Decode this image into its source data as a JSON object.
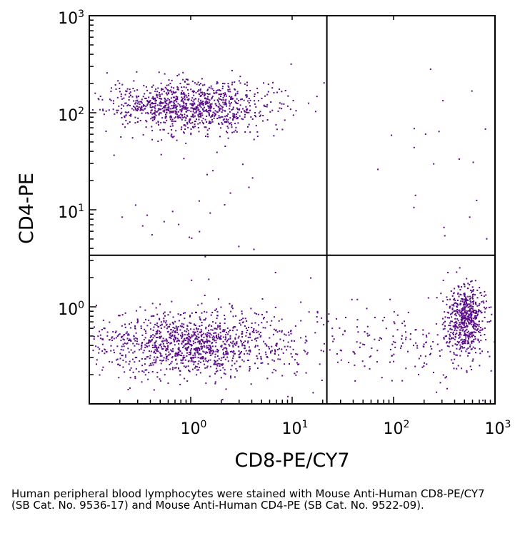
{
  "chart_data": {
    "type": "scatter",
    "subtype": "flow-cytometry dot plot, log-log axes, quadrant gates",
    "xlabel": "CD8-PE/CY7",
    "ylabel": "CD4-PE",
    "xscale": "log",
    "yscale": "log",
    "xlim": [
      0.1,
      1000
    ],
    "ylim": [
      0.1,
      1000
    ],
    "x_major_ticks": [
      {
        "value": 1,
        "base": "10",
        "exp": "0"
      },
      {
        "value": 10,
        "base": "10",
        "exp": "1"
      },
      {
        "value": 100,
        "base": "10",
        "exp": "2"
      },
      {
        "value": 1000,
        "base": "10",
        "exp": "3"
      }
    ],
    "y_major_ticks": [
      {
        "value": 1,
        "base": "10",
        "exp": "0"
      },
      {
        "value": 10,
        "base": "10",
        "exp": "1"
      },
      {
        "value": 100,
        "base": "10",
        "exp": "2"
      },
      {
        "value": 1000,
        "base": "10",
        "exp": "3"
      }
    ],
    "gates": {
      "x": 22,
      "y": 3.4
    },
    "point_color": "#5b0a87",
    "populations": [
      {
        "name": "CD4+ CD8- (upper-left)",
        "center": [
          1.0,
          115
        ],
        "spread_log": [
          0.42,
          0.13
        ],
        "count": 1050
      },
      {
        "name": "CD4- CD8- (lower-left)",
        "center": [
          1.1,
          0.42
        ],
        "spread_log": [
          0.5,
          0.17
        ],
        "count": 1250
      },
      {
        "name": "CD4- CD8+ (lower-right)",
        "center": [
          520,
          0.75
        ],
        "spread_log": [
          0.09,
          0.18
        ],
        "count": 560
      },
      {
        "name": "CD4- CD8+ tail (lower-right)",
        "center": [
          150,
          0.4
        ],
        "spread_log": [
          0.55,
          0.2
        ],
        "count": 180
      },
      {
        "name": "sparse events (upper-right)",
        "center": [
          350,
          40
        ],
        "spread_log": [
          0.35,
          0.45
        ],
        "count": 25
      },
      {
        "name": "sparse events (upper-left)",
        "center": [
          1.5,
          10
        ],
        "spread_log": [
          0.5,
          0.4
        ],
        "count": 30
      }
    ]
  },
  "caption": "Human peripheral blood lymphocytes were stained with Mouse Anti-Human CD8-PE/CY7 (SB Cat. No. 9536-17) and Mouse Anti-Human CD4-PE (SB Cat. No. 9522-09)."
}
